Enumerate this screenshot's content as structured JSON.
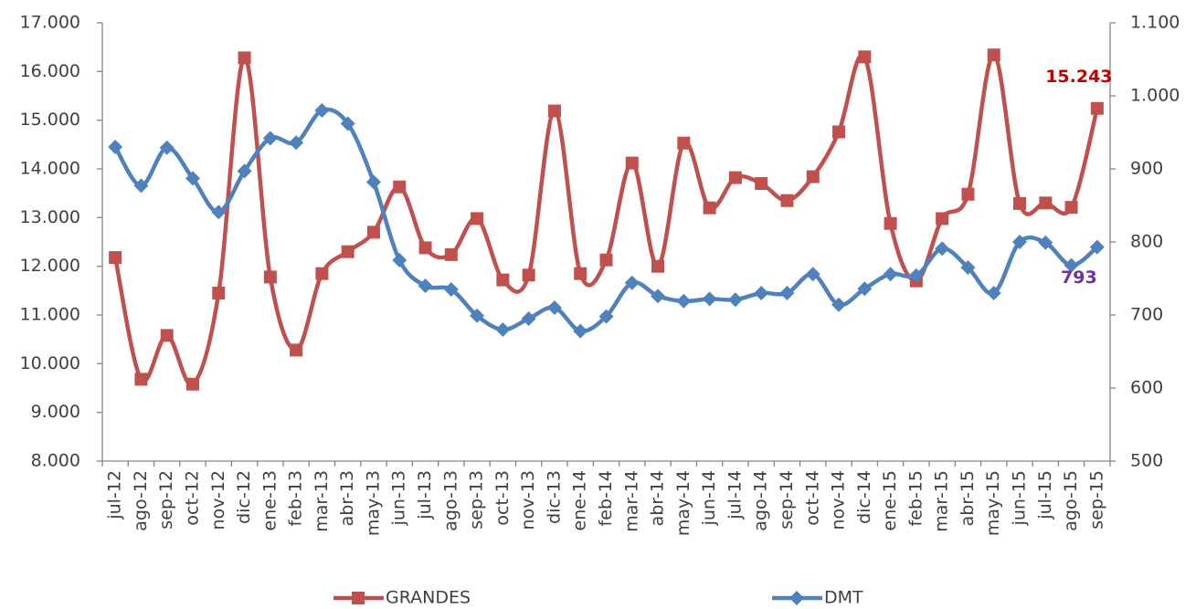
{
  "chart_data": {
    "type": "line",
    "categories": [
      "jul-12",
      "ago-12",
      "sep-12",
      "oct-12",
      "nov-12",
      "dic-12",
      "ene-13",
      "feb-13",
      "mar-13",
      "abr-13",
      "may-13",
      "jun-13",
      "jul-13",
      "ago-13",
      "sep-13",
      "oct-13",
      "nov-13",
      "dic-13",
      "ene-14",
      "feb-14",
      "mar-14",
      "abr-14",
      "may-14",
      "jun-14",
      "jul-14",
      "ago-14",
      "sep-14",
      "oct-14",
      "nov-14",
      "dic-14",
      "ene-15",
      "feb-15",
      "mar-15",
      "abr-15",
      "may-15",
      "jun-15",
      "jul-15",
      "ago-15",
      "sep-15"
    ],
    "series": [
      {
        "name": "GRANDES",
        "color": "#c0504d",
        "marker": "square",
        "axis": "y",
        "label_color": "#c00000",
        "values": [
          12180,
          9680,
          10580,
          9580,
          11450,
          16280,
          11780,
          10280,
          11850,
          12300,
          12700,
          13630,
          12380,
          12240,
          12980,
          11720,
          11820,
          15190,
          11850,
          12130,
          14120,
          12000,
          14530,
          13200,
          13820,
          13700,
          13350,
          13840,
          14760,
          16300,
          12880,
          11700,
          12980,
          13480,
          16340,
          13290,
          13300,
          13210,
          15243
        ],
        "value_labels": [
          null,
          null,
          null,
          null,
          null,
          null,
          null,
          null,
          null,
          null,
          null,
          null,
          null,
          null,
          null,
          null,
          null,
          null,
          null,
          null,
          null,
          null,
          null,
          null,
          null,
          null,
          null,
          null,
          null,
          null,
          null,
          null,
          null,
          null,
          null,
          null,
          null,
          null,
          "15.243"
        ]
      },
      {
        "name": "DMT",
        "color": "#4f81bd",
        "marker": "diamond",
        "axis": "y2",
        "label_color": "#7030a0",
        "values": [
          930,
          877,
          929,
          887,
          841,
          897,
          942,
          936,
          980,
          962,
          882,
          775,
          740,
          735,
          699,
          680,
          695,
          710,
          678,
          698,
          744,
          726,
          719,
          722,
          721,
          730,
          730,
          756,
          714,
          736,
          756,
          754,
          791,
          765,
          730,
          800,
          799,
          768,
          793
        ],
        "value_labels": [
          null,
          null,
          null,
          null,
          null,
          null,
          null,
          null,
          null,
          null,
          null,
          null,
          null,
          null,
          null,
          null,
          null,
          null,
          null,
          null,
          null,
          null,
          null,
          null,
          null,
          null,
          null,
          null,
          null,
          null,
          null,
          null,
          null,
          null,
          null,
          null,
          null,
          null,
          "793"
        ]
      }
    ],
    "ylim": [
      8000,
      17000
    ],
    "yticks": [
      {
        "value": 8000,
        "label": "8.000"
      },
      {
        "value": 9000,
        "label": "9.000"
      },
      {
        "value": 10000,
        "label": "10.000"
      },
      {
        "value": 11000,
        "label": "11.000"
      },
      {
        "value": 12000,
        "label": "12.000"
      },
      {
        "value": 13000,
        "label": "13.000"
      },
      {
        "value": 14000,
        "label": "14.000"
      },
      {
        "value": 15000,
        "label": "15.000"
      },
      {
        "value": 16000,
        "label": "16.000"
      },
      {
        "value": 17000,
        "label": "17.000"
      }
    ],
    "y2lim": [
      500,
      1100
    ],
    "y2ticks": [
      500,
      600,
      700,
      800,
      900,
      {
        "value": 1000,
        "label": "1.000"
      },
      {
        "value": 1100,
        "label": "1.100"
      }
    ],
    "grid": false,
    "smooth": true,
    "legend": "bottom"
  }
}
